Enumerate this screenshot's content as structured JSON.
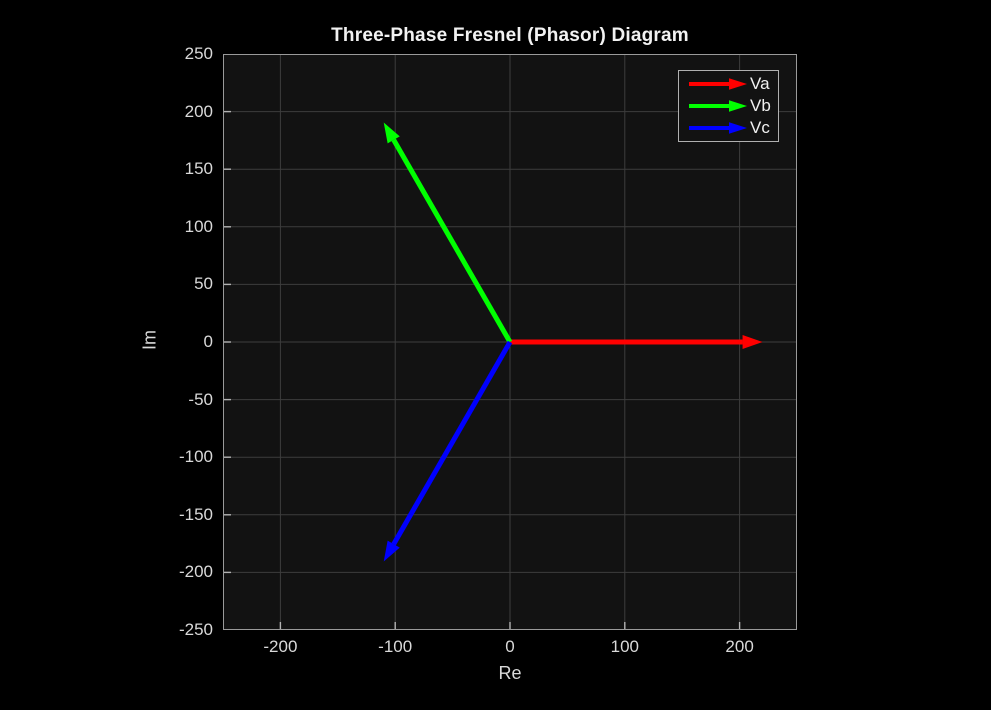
{
  "window": {
    "background": "#000000"
  },
  "theme": {
    "axes_background": "#121212",
    "grid_color": "#3d3d3d",
    "axis_box_color": "#9a9a9a",
    "tick_mark_color": "#b3b3b3",
    "tick_label_color": "#d9d9d9",
    "title_color": "#f2f2f2",
    "legend_border_color": "#b0b0b0",
    "legend_text_color": "#f0f0f0"
  },
  "chart_data": {
    "type": "phasor-vector",
    "title": "Three-Phase Fresnel (Phasor) Diagram",
    "xlabel": "Re",
    "ylabel": "Im",
    "xlim": [
      -250,
      250
    ],
    "ylim": [
      -250,
      250
    ],
    "x_ticks": [
      -200,
      -100,
      0,
      100,
      200
    ],
    "y_ticks": [
      -250,
      -200,
      -150,
      -100,
      -50,
      0,
      50,
      100,
      150,
      200,
      250
    ],
    "grid": true,
    "legend": {
      "position": "top-right",
      "entries": [
        "Va",
        "Vb",
        "Vc"
      ]
    },
    "origin": {
      "re": 0,
      "im": 0
    },
    "series": [
      {
        "name": "Va",
        "color": "#ff0000",
        "magnitude": 220,
        "angle_deg": 0,
        "re": 220,
        "im": 0
      },
      {
        "name": "Vb",
        "color": "#00ff00",
        "magnitude": 220,
        "angle_deg": 120,
        "re": -110,
        "im": 190.5
      },
      {
        "name": "Vc",
        "color": "#0000ff",
        "magnitude": 220,
        "angle_deg": -120,
        "re": -110,
        "im": -190.5
      }
    ]
  }
}
